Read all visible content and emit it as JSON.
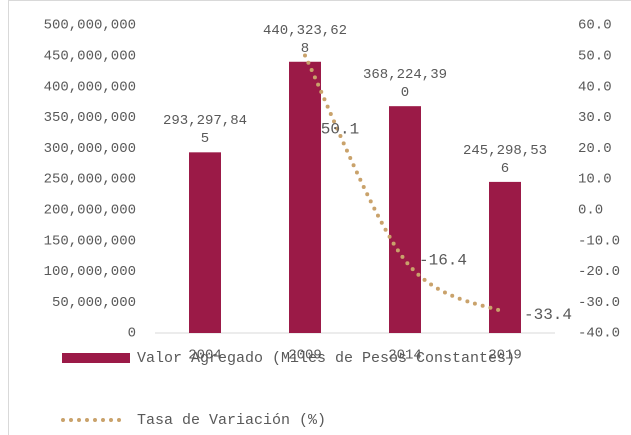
{
  "chart_data": {
    "type": "bar",
    "categories": [
      "2004",
      "2009",
      "2014",
      "2019"
    ],
    "series": [
      {
        "name": "Valor Agregado (Miles de Pesos Constantes)",
        "type": "bar",
        "axis": "y",
        "color": "#9b1a47",
        "values": [
          293297845,
          440323628,
          368224390,
          245298536
        ],
        "value_labels": [
          "293,297,845",
          "440,323,628",
          "368,224,390",
          "245,298,536"
        ]
      },
      {
        "name": "Tasa de Variación (%)",
        "type": "line",
        "axis": "y2",
        "color": "#c9a26b",
        "values": [
          null,
          50.1,
          -16.4,
          -33.4
        ]
      }
    ],
    "ylim": [
      0,
      500000000
    ],
    "yticks": [
      0,
      {
        "value": 50000000,
        "label": "50,000,000"
      },
      {
        "value": 100000000,
        "label": "100,000,000"
      },
      {
        "value": 150000000,
        "label": "150,000,000"
      },
      {
        "value": 200000000,
        "label": "200,000,000"
      },
      {
        "value": 250000000,
        "label": "250,000,000"
      },
      {
        "value": 300000000,
        "label": "300,000,000"
      },
      {
        "value": 350000000,
        "label": "350,000,000"
      },
      {
        "value": 400000000,
        "label": "400,000,000"
      },
      {
        "value": 450000000,
        "label": "450,000,000"
      },
      {
        "value": 500000000,
        "label": "500,000,000"
      }
    ],
    "y2lim": [
      -40,
      60
    ],
    "y2ticks": [
      {
        "value": -40,
        "label": "-40.0"
      },
      {
        "value": -30,
        "label": "-30.0"
      },
      {
        "value": -20,
        "label": "-20.0"
      },
      {
        "value": -10,
        "label": "-10.0"
      },
      {
        "value": 0,
        "label": "0.0"
      },
      {
        "value": 10,
        "label": "10.0"
      },
      {
        "value": 20,
        "label": "20.0"
      },
      {
        "value": 30,
        "label": "30.0"
      },
      {
        "value": 40,
        "label": "40.0"
      },
      {
        "value": 50,
        "label": "50.0"
      },
      {
        "value": 60,
        "label": "60.0"
      }
    ],
    "grid": false
  }
}
